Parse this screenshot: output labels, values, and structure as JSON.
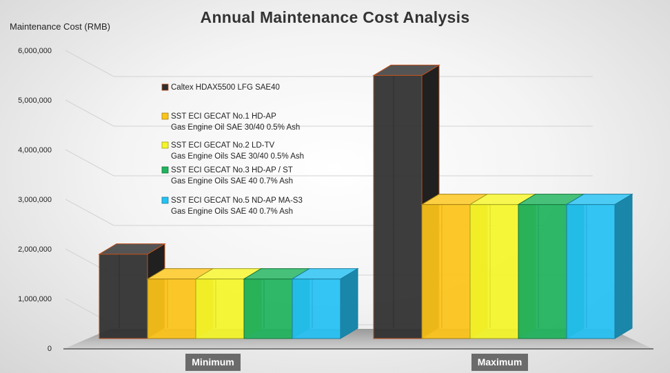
{
  "chart_data": {
    "type": "bar",
    "title": "Annual Maintenance Cost Analysis",
    "ylabel": "Maintenance Cost (RMB)",
    "xlabel": "",
    "ylim": [
      0,
      6000000
    ],
    "yticks": [
      0,
      1000000,
      2000000,
      3000000,
      4000000,
      5000000,
      6000000
    ],
    "ytick_labels": [
      "0",
      "1,000,000",
      "2,000,000",
      "3,000,000",
      "4,000,000",
      "5,000,000",
      "6,000,000"
    ],
    "categories": [
      "Minimum",
      "Maximum"
    ],
    "grid": true,
    "legend_position": "inside-top-left",
    "series": [
      {
        "name": "Caltex HDAX5500 LFG SAE40",
        "label_lines": [
          "Caltex HDAX5500 LFG SAE40"
        ],
        "color": "#2e2e2e",
        "values": [
          1700000,
          5300000
        ]
      },
      {
        "name": "SST ECI GECAT No.1 HD-AP Gas Engine Oil SAE 30/40 0.5% Ash",
        "label_lines": [
          "SST ECI GECAT No.1 HD-AP",
          "Gas Engine Oil SAE 30/40 0.5% Ash"
        ],
        "color": "#fcc419",
        "values": [
          1200000,
          2700000
        ]
      },
      {
        "name": "SST ECI GECAT No.2 LD-TV Gas Engine Oils SAE 30/40 0.5% Ash",
        "label_lines": [
          "SST ECI GECAT No.2 LD-TV",
          "Gas Engine Oils SAE 30/40 0.5% Ash"
        ],
        "color": "#f5f52a",
        "values": [
          1200000,
          2700000
        ]
      },
      {
        "name": "SST ECI GECAT No.3 HD-AP / ST Gas Engine Oils SAE 40 0.7% Ash",
        "label_lines": [
          "SST ECI GECAT No.3 HD-AP / ST",
          "Gas Engine Oils SAE 40 0.7% Ash"
        ],
        "color": "#1fb35c",
        "values": [
          1200000,
          2700000
        ]
      },
      {
        "name": "SST ECI GECAT No.5 ND-AP MA-S3 Gas Engine Oils SAE 40 0.7% Ash",
        "label_lines": [
          "SST ECI GECAT No.5 ND-AP MA-S3",
          "Gas Engine Oils SAE 40 0.7% Ash"
        ],
        "color": "#25c1f3",
        "values": [
          1200000,
          2700000
        ]
      }
    ]
  }
}
